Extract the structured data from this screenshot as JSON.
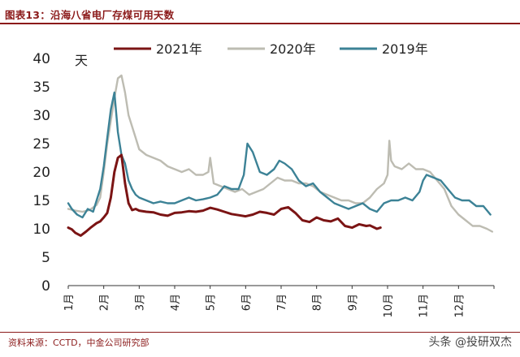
{
  "title": "图表13：沿海八省电厂存煤可用天数",
  "source": "资料来源：CCTD，中金公司研究部",
  "watermark": "头条 @投研双杰",
  "chart_data": {
    "type": "line",
    "ylabel": "天",
    "ylim": [
      0,
      40
    ],
    "yticks": [
      "0",
      "5",
      "10",
      "15",
      "20",
      "25",
      "30",
      "35",
      "40"
    ],
    "xlim": [
      1,
      13
    ],
    "x_ticks": [
      "1月",
      "2月",
      "3月",
      "4月",
      "5月",
      "6月",
      "7月",
      "8月",
      "9月",
      "10月",
      "11月",
      "12月"
    ],
    "grid": false,
    "legend_position": "top",
    "series": [
      {
        "name": "2021年",
        "color": "#7b1414",
        "x": [
          1.0,
          1.1,
          1.2,
          1.35,
          1.5,
          1.65,
          1.8,
          1.9,
          2.0,
          2.1,
          2.2,
          2.3,
          2.4,
          2.5,
          2.6,
          2.7,
          2.8,
          2.9,
          3.0,
          3.2,
          3.4,
          3.6,
          3.8,
          4.0,
          4.2,
          4.4,
          4.6,
          4.8,
          5.0,
          5.2,
          5.4,
          5.6,
          5.8,
          6.0,
          6.2,
          6.4,
          6.6,
          6.8,
          7.0,
          7.2,
          7.4,
          7.6,
          7.8,
          8.0,
          8.2,
          8.4,
          8.6,
          8.8,
          9.0,
          9.2,
          9.4,
          9.5,
          9.6,
          9.7,
          9.8
        ],
        "values": [
          10.2,
          9.9,
          9.3,
          8.8,
          9.5,
          10.3,
          11.0,
          11.3,
          12.0,
          12.8,
          15.5,
          20.0,
          22.5,
          23.0,
          18.0,
          14.5,
          13.3,
          13.5,
          13.2,
          13.0,
          12.9,
          12.5,
          12.3,
          12.8,
          12.9,
          13.1,
          13.0,
          13.2,
          13.7,
          13.4,
          13.0,
          12.6,
          12.4,
          12.2,
          12.5,
          13.0,
          12.8,
          12.5,
          13.5,
          13.8,
          12.8,
          11.5,
          11.2,
          12.0,
          11.5,
          11.3,
          11.8,
          10.5,
          10.2,
          10.8,
          10.5,
          10.6,
          10.3,
          10.0,
          10.2
        ]
      },
      {
        "name": "2020年",
        "color": "#bdbcb2",
        "x": [
          1.0,
          1.2,
          1.4,
          1.6,
          1.8,
          1.9,
          2.0,
          2.1,
          2.2,
          2.3,
          2.4,
          2.5,
          2.6,
          2.7,
          2.8,
          2.9,
          3.0,
          3.2,
          3.4,
          3.6,
          3.8,
          4.0,
          4.2,
          4.4,
          4.6,
          4.8,
          4.95,
          5.0,
          5.1,
          5.3,
          5.5,
          5.7,
          5.9,
          6.1,
          6.3,
          6.5,
          6.7,
          6.9,
          7.1,
          7.3,
          7.5,
          7.7,
          7.9,
          8.1,
          8.3,
          8.5,
          8.7,
          8.9,
          9.1,
          9.3,
          9.5,
          9.7,
          9.9,
          10.0,
          10.05,
          10.1,
          10.2,
          10.4,
          10.6,
          10.8,
          11.0,
          11.2,
          11.4,
          11.6,
          11.8,
          12.0,
          12.2,
          12.4,
          12.6,
          12.8,
          12.95
        ],
        "values": [
          13.5,
          13.2,
          13.0,
          13.3,
          14.2,
          15.5,
          20.0,
          25.0,
          29.0,
          33.0,
          36.5,
          37.0,
          34.0,
          30.0,
          28.0,
          26.0,
          24.0,
          23.0,
          22.5,
          22.0,
          21.0,
          20.5,
          20.0,
          20.5,
          19.5,
          19.5,
          20.0,
          22.5,
          18.0,
          17.5,
          17.0,
          16.5,
          17.0,
          16.0,
          16.5,
          17.0,
          18.0,
          19.0,
          18.5,
          18.5,
          18.0,
          18.0,
          17.5,
          16.5,
          16.0,
          15.5,
          15.0,
          15.0,
          14.5,
          14.5,
          15.5,
          17.0,
          18.0,
          19.5,
          25.5,
          22.0,
          21.0,
          20.5,
          21.5,
          20.5,
          20.5,
          20.0,
          18.5,
          17.0,
          14.0,
          12.5,
          11.5,
          10.5,
          10.5,
          10.0,
          9.5
        ]
      },
      {
        "name": "2019年",
        "color": "#3c8296",
        "x": [
          1.0,
          1.1,
          1.25,
          1.4,
          1.55,
          1.7,
          1.8,
          1.9,
          2.0,
          2.1,
          2.2,
          2.3,
          2.4,
          2.5,
          2.6,
          2.7,
          2.8,
          2.9,
          3.0,
          3.2,
          3.4,
          3.6,
          3.8,
          4.0,
          4.2,
          4.4,
          4.6,
          4.8,
          5.0,
          5.2,
          5.4,
          5.6,
          5.8,
          5.95,
          6.05,
          6.2,
          6.4,
          6.6,
          6.8,
          6.95,
          7.1,
          7.3,
          7.5,
          7.7,
          7.9,
          8.1,
          8.3,
          8.5,
          8.7,
          8.9,
          9.1,
          9.3,
          9.5,
          9.7,
          9.9,
          10.1,
          10.3,
          10.5,
          10.7,
          10.9,
          11.0,
          11.1,
          11.3,
          11.5,
          11.7,
          11.9,
          12.1,
          12.3,
          12.5,
          12.7,
          12.9
        ],
        "values": [
          14.5,
          13.5,
          12.5,
          12.0,
          13.5,
          13.0,
          15.0,
          17.0,
          21.0,
          26.0,
          31.0,
          34.0,
          27.0,
          23.0,
          21.5,
          18.5,
          17.0,
          16.0,
          15.5,
          15.0,
          14.5,
          14.8,
          14.5,
          14.5,
          15.0,
          15.5,
          15.0,
          15.2,
          15.5,
          16.0,
          17.5,
          17.0,
          17.0,
          19.5,
          25.0,
          23.5,
          20.0,
          19.5,
          20.5,
          22.0,
          21.5,
          20.5,
          18.5,
          17.5,
          18.0,
          16.5,
          15.5,
          14.5,
          14.0,
          13.5,
          14.0,
          14.5,
          13.5,
          13.0,
          14.5,
          15.0,
          15.0,
          15.5,
          15.0,
          16.5,
          18.5,
          19.5,
          19.0,
          18.5,
          17.0,
          15.5,
          15.0,
          15.0,
          14.0,
          14.0,
          12.5
        ]
      }
    ]
  }
}
